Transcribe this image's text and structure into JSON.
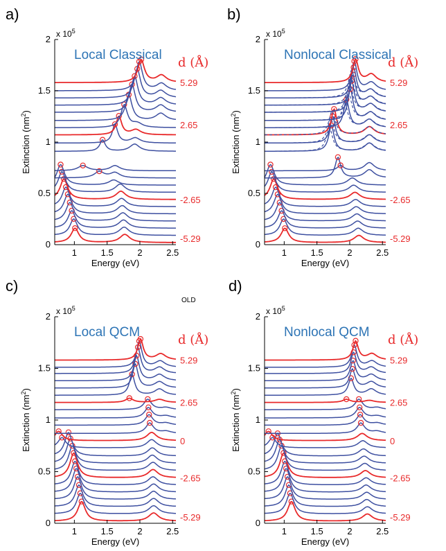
{
  "figure": {
    "note": "OLD",
    "colors": {
      "red": "#e8292a",
      "blue": "#3d4fa0",
      "title": "#2d74b5",
      "axis": "#000000"
    }
  },
  "chart_data": [
    {
      "type": "line",
      "panel": "a)",
      "title": "Local Classical",
      "xlabel": "Energy (eV)",
      "ylabel": "Extinction (nm2)",
      "y_multiplier": "x 10^5",
      "xlim": [
        0.7,
        2.55
      ],
      "ylim": [
        0,
        2
      ],
      "xticks": [
        1,
        1.5,
        2,
        2.5
      ],
      "yticks": [
        0,
        0.5,
        1,
        1.5,
        2
      ],
      "legend_title": "d (Å)",
      "row_labels": [
        {
          "label": "5.29",
          "y": 1.58
        },
        {
          "label": "2.65",
          "y": 1.17
        },
        {
          "label": "-2.65",
          "y": 0.44
        },
        {
          "label": "-5.29",
          "y": 0.06
        }
      ],
      "baselines": [
        0.02,
        0.09,
        0.16,
        0.23,
        0.3,
        0.37,
        0.44,
        0.51,
        0.58,
        0.65,
        0.72,
        0.91,
        0.99,
        1.07,
        1.14,
        1.21,
        1.29,
        1.36,
        1.43,
        1.5,
        1.58
      ],
      "red_rows": [
        0,
        6,
        13,
        20
      ],
      "peaks": [
        {
          "e": 1.01,
          "h": 0.14,
          "w": 0.07,
          "e2": 1.77,
          "h2": 0.08
        },
        {
          "e": 0.99,
          "h": 0.16,
          "w": 0.07,
          "e2": 1.76,
          "h2": 0.08
        },
        {
          "e": 0.96,
          "h": 0.17,
          "w": 0.07,
          "e2": 1.75,
          "h2": 0.08
        },
        {
          "e": 0.93,
          "h": 0.18,
          "w": 0.07,
          "e2": 1.74,
          "h2": 0.08
        },
        {
          "e": 0.9,
          "h": 0.19,
          "w": 0.07,
          "e2": 1.73,
          "h2": 0.08
        },
        {
          "e": 0.87,
          "h": 0.19,
          "w": 0.07,
          "e2": 1.72,
          "h2": 0.08
        },
        {
          "e": 0.84,
          "h": 0.2,
          "w": 0.07,
          "e2": 1.71,
          "h2": 0.08
        },
        {
          "e": 0.81,
          "h": 0.2,
          "w": 0.07,
          "e2": 1.7,
          "h2": 0.08
        },
        {
          "e": 0.79,
          "h": 0.2,
          "w": 0.07,
          "e2": 1.6,
          "h2": 0.05
        },
        {
          "e": 1.38,
          "h": 0.06,
          "w": 0.09,
          "e2": 1.62,
          "h2": 0.05
        },
        {
          "e": 1.13,
          "h": 0.05,
          "w": 0.09,
          "e2": 1.62,
          "h2": 0.05
        },
        {
          "e": 1.43,
          "h": 0.11,
          "w": 0.05,
          "e2": 1.92,
          "h2": 0.07
        },
        {
          "e": 1.62,
          "h": 0.18,
          "w": 0.05,
          "e2": 1.93,
          "h2": 0.05
        },
        {
          "e": 1.68,
          "h": 0.18,
          "w": 0.05,
          "e2": 1.94,
          "h2": 0.05
        },
        {
          "e": 1.76,
          "h": 0.22,
          "w": 0.06,
          "e2": 1.96,
          "h2": 0.04
        },
        {
          "e": 1.83,
          "h": 0.25,
          "w": 0.06,
          "e2": 2.32,
          "h2": 0.07
        },
        {
          "e": 1.88,
          "h": 0.27,
          "w": 0.06,
          "e2": 2.32,
          "h2": 0.07
        },
        {
          "e": 1.92,
          "h": 0.28,
          "w": 0.06,
          "e2": 2.32,
          "h2": 0.07
        },
        {
          "e": 1.96,
          "h": 0.28,
          "w": 0.06,
          "e2": 2.32,
          "h2": 0.07
        },
        {
          "e": 1.99,
          "h": 0.28,
          "w": 0.06,
          "e2": 2.33,
          "h2": 0.07
        },
        {
          "e": 2.02,
          "h": 0.22,
          "w": 0.06,
          "e2": 2.33,
          "h2": 0.07
        }
      ]
    },
    {
      "type": "line",
      "panel": "b)",
      "title": "Nonlocal Classical",
      "xlabel": "Energy (eV)",
      "ylabel": "Extinction (nm2)",
      "y_multiplier": "x 10^5",
      "xlim": [
        0.7,
        2.55
      ],
      "ylim": [
        0,
        2
      ],
      "xticks": [
        1,
        1.5,
        2,
        2.5
      ],
      "yticks": [
        0,
        0.5,
        1,
        1.5,
        2
      ],
      "legend_title": "d (Å)",
      "row_labels": [
        {
          "label": "5.29",
          "y": 1.58
        },
        {
          "label": "2.65",
          "y": 1.17
        },
        {
          "label": "-2.65",
          "y": 0.44
        },
        {
          "label": "-5.29",
          "y": 0.06
        }
      ],
      "baselines": [
        0.02,
        0.09,
        0.16,
        0.23,
        0.3,
        0.37,
        0.44,
        0.51,
        0.58,
        0.65,
        0.72,
        0.91,
        0.99,
        1.07,
        1.14,
        1.21,
        1.29,
        1.36,
        1.43,
        1.5,
        1.58
      ],
      "red_rows": [
        0,
        6,
        13,
        20
      ],
      "dashed_rows": [
        11,
        12,
        13,
        14,
        15,
        16,
        17,
        18
      ],
      "peaks": [
        {
          "e": 1.01,
          "h": 0.14,
          "w": 0.07,
          "e2": 2.14,
          "h2": 0.07
        },
        {
          "e": 0.99,
          "h": 0.16,
          "w": 0.07,
          "e2": 2.13,
          "h2": 0.07
        },
        {
          "e": 0.96,
          "h": 0.17,
          "w": 0.07,
          "e2": 2.12,
          "h2": 0.07
        },
        {
          "e": 0.93,
          "h": 0.18,
          "w": 0.07,
          "e2": 2.11,
          "h2": 0.07
        },
        {
          "e": 0.9,
          "h": 0.19,
          "w": 0.07,
          "e2": 2.1,
          "h2": 0.07
        },
        {
          "e": 0.87,
          "h": 0.19,
          "w": 0.07,
          "e2": 2.09,
          "h2": 0.07
        },
        {
          "e": 0.84,
          "h": 0.2,
          "w": 0.07,
          "e2": 2.08,
          "h2": 0.07
        },
        {
          "e": 0.81,
          "h": 0.2,
          "w": 0.07,
          "e2": 2.06,
          "h2": 0.07
        },
        {
          "e": 0.79,
          "h": 0.2,
          "w": 0.07,
          "e2": 2.04,
          "h2": 0.07
        },
        {
          "e": 1.82,
          "h": 0.2,
          "w": 0.05,
          "e2": 2.3,
          "h2": 0.08
        },
        {
          "e": 1.86,
          "h": 0.05,
          "w": 0.06,
          "e2": 2.3,
          "h2": 0.08
        },
        {
          "e": 1.72,
          "h": 0.25,
          "w": 0.05,
          "e2": 2.3,
          "h2": 0.08
        },
        {
          "e": 1.74,
          "h": 0.26,
          "w": 0.05,
          "e2": 2.3,
          "h2": 0.08
        },
        {
          "e": 1.76,
          "h": 0.25,
          "w": 0.05,
          "e2": 2.3,
          "h2": 0.08
        },
        {
          "e": 1.95,
          "h": 0.27,
          "w": 0.05,
          "e2": 2.3,
          "h2": 0.08
        },
        {
          "e": 2.01,
          "h": 0.3,
          "w": 0.05,
          "e2": 2.32,
          "h2": 0.08
        },
        {
          "e": 2.03,
          "h": 0.3,
          "w": 0.05,
          "e2": 2.32,
          "h2": 0.08
        },
        {
          "e": 2.05,
          "h": 0.29,
          "w": 0.05,
          "e2": 2.32,
          "h2": 0.08
        },
        {
          "e": 2.06,
          "h": 0.29,
          "w": 0.05,
          "e2": 2.32,
          "h2": 0.08
        },
        {
          "e": 2.07,
          "h": 0.28,
          "w": 0.05,
          "e2": 2.33,
          "h2": 0.08
        },
        {
          "e": 2.09,
          "h": 0.22,
          "w": 0.05,
          "e2": 2.33,
          "h2": 0.08
        }
      ]
    },
    {
      "type": "line",
      "panel": "c)",
      "title": "Local QCM",
      "xlabel": "Energy (eV)",
      "ylabel": "Extinction (nm2)",
      "y_multiplier": "x 10^5",
      "xlim": [
        0.7,
        2.55
      ],
      "ylim": [
        0,
        2
      ],
      "xticks": [
        1,
        1.5,
        2,
        2.5
      ],
      "yticks": [
        0,
        0.5,
        1,
        1.5,
        2
      ],
      "legend_title": "d (Å)",
      "row_labels": [
        {
          "label": "5.29",
          "y": 1.58
        },
        {
          "label": "2.65",
          "y": 1.17
        },
        {
          "label": "0",
          "y": 0.8
        },
        {
          "label": "-2.65",
          "y": 0.44
        },
        {
          "label": "-5.29",
          "y": 0.06
        }
      ],
      "baselines": [
        0.02,
        0.09,
        0.16,
        0.23,
        0.3,
        0.37,
        0.44,
        0.51,
        0.58,
        0.65,
        0.73,
        0.8,
        0.87,
        0.95,
        1.02,
        1.1,
        1.17,
        1.24,
        1.31,
        1.38,
        1.45,
        1.51,
        1.58
      ],
      "red_rows": [
        0,
        6,
        11,
        16,
        22
      ],
      "peaks": [
        {
          "e": 1.11,
          "h": 0.19,
          "w": 0.07,
          "e2": 2.21,
          "h2": 0.08
        },
        {
          "e": 1.09,
          "h": 0.2,
          "w": 0.07,
          "e2": 2.21,
          "h2": 0.08
        },
        {
          "e": 1.07,
          "h": 0.21,
          "w": 0.07,
          "e2": 2.21,
          "h2": 0.08
        },
        {
          "e": 1.05,
          "h": 0.22,
          "w": 0.07,
          "e2": 2.21,
          "h2": 0.08
        },
        {
          "e": 1.03,
          "h": 0.23,
          "w": 0.07,
          "e2": 2.21,
          "h2": 0.08
        },
        {
          "e": 1.01,
          "h": 0.23,
          "w": 0.07,
          "e2": 2.2,
          "h2": 0.08
        },
        {
          "e": 0.99,
          "h": 0.24,
          "w": 0.07,
          "e2": 2.2,
          "h2": 0.08
        },
        {
          "e": 0.97,
          "h": 0.24,
          "w": 0.07,
          "e2": 2.2,
          "h2": 0.08
        },
        {
          "e": 0.94,
          "h": 0.24,
          "w": 0.07,
          "e2": 2.19,
          "h2": 0.08
        },
        {
          "e": 0.91,
          "h": 0.23,
          "w": 0.07,
          "e2": 2.19,
          "h2": 0.08
        },
        {
          "e": 0.81,
          "h": 0.1,
          "w": 0.07,
          "e2": 2.18,
          "h2": 0.08
        },
        {
          "e": 0.76,
          "h": 0.09,
          "w": 0.07,
          "e2": 2.18,
          "h2": 0.08
        },
        {
          "e": 2.15,
          "h": 0.1,
          "w": 0.07,
          "e2": 2.4,
          "h2": 0.02
        },
        {
          "e": 2.14,
          "h": 0.1,
          "w": 0.07,
          "e2": 2.4,
          "h2": 0.02
        },
        {
          "e": 2.13,
          "h": 0.1,
          "w": 0.07,
          "e2": 2.4,
          "h2": 0.02
        },
        {
          "e": 2.12,
          "h": 0.1,
          "w": 0.07,
          "e2": 2.4,
          "h2": 0.02
        },
        {
          "e": 1.84,
          "h": 0.04,
          "w": 0.07,
          "e2": 2.3,
          "h2": 0.03
        },
        {
          "e": 1.88,
          "h": 0.2,
          "w": 0.05,
          "e2": 2.3,
          "h2": 0.06
        },
        {
          "e": 1.93,
          "h": 0.23,
          "w": 0.05,
          "e2": 2.3,
          "h2": 0.06
        },
        {
          "e": 1.95,
          "h": 0.24,
          "w": 0.05,
          "e2": 2.3,
          "h2": 0.06
        },
        {
          "e": 1.97,
          "h": 0.25,
          "w": 0.05,
          "e2": 2.3,
          "h2": 0.06
        },
        {
          "e": 1.99,
          "h": 0.25,
          "w": 0.05,
          "e2": 2.31,
          "h2": 0.06
        },
        {
          "e": 2.01,
          "h": 0.2,
          "w": 0.05,
          "e2": 2.32,
          "h2": 0.06
        }
      ]
    },
    {
      "type": "line",
      "panel": "d)",
      "title": "Nonlocal  QCM",
      "xlabel": "Energy (eV)",
      "ylabel": "Extinction (nm2)",
      "y_multiplier": "x 10^5",
      "xlim": [
        0.7,
        2.55
      ],
      "ylim": [
        0,
        2
      ],
      "xticks": [
        1,
        1.5,
        2,
        2.5
      ],
      "yticks": [
        0,
        0.5,
        1,
        1.5,
        2
      ],
      "legend_title": "d (Å)",
      "row_labels": [
        {
          "label": "5.29",
          "y": 1.58
        },
        {
          "label": "2.65",
          "y": 1.17
        },
        {
          "label": "0",
          "y": 0.8
        },
        {
          "label": "-2.65",
          "y": 0.44
        },
        {
          "label": "-5.29",
          "y": 0.06
        }
      ],
      "baselines": [
        0.02,
        0.09,
        0.16,
        0.23,
        0.3,
        0.37,
        0.44,
        0.51,
        0.58,
        0.65,
        0.73,
        0.8,
        0.87,
        0.95,
        1.02,
        1.1,
        1.17,
        1.24,
        1.31,
        1.38,
        1.45,
        1.51,
        1.58
      ],
      "red_rows": [
        0,
        6,
        11,
        16,
        22
      ],
      "peaks": [
        {
          "e": 1.11,
          "h": 0.19,
          "w": 0.07,
          "e2": 2.27,
          "h2": 0.07
        },
        {
          "e": 1.09,
          "h": 0.2,
          "w": 0.07,
          "e2": 2.27,
          "h2": 0.07
        },
        {
          "e": 1.07,
          "h": 0.21,
          "w": 0.07,
          "e2": 2.26,
          "h2": 0.07
        },
        {
          "e": 1.05,
          "h": 0.22,
          "w": 0.07,
          "e2": 2.26,
          "h2": 0.07
        },
        {
          "e": 1.03,
          "h": 0.23,
          "w": 0.07,
          "e2": 2.25,
          "h2": 0.07
        },
        {
          "e": 1.01,
          "h": 0.23,
          "w": 0.07,
          "e2": 2.25,
          "h2": 0.07
        },
        {
          "e": 0.99,
          "h": 0.24,
          "w": 0.07,
          "e2": 2.24,
          "h2": 0.07
        },
        {
          "e": 0.96,
          "h": 0.24,
          "w": 0.07,
          "e2": 2.23,
          "h2": 0.07
        },
        {
          "e": 0.93,
          "h": 0.23,
          "w": 0.07,
          "e2": 2.22,
          "h2": 0.07
        },
        {
          "e": 0.9,
          "h": 0.22,
          "w": 0.07,
          "e2": 2.21,
          "h2": 0.07
        },
        {
          "e": 0.82,
          "h": 0.1,
          "w": 0.07,
          "e2": 2.2,
          "h2": 0.07
        },
        {
          "e": 0.76,
          "h": 0.09,
          "w": 0.07,
          "e2": 2.19,
          "h2": 0.07
        },
        {
          "e": 2.17,
          "h": 0.1,
          "w": 0.07,
          "e2": 2.42,
          "h2": 0.02
        },
        {
          "e": 2.16,
          "h": 0.1,
          "w": 0.07,
          "e2": 2.42,
          "h2": 0.02
        },
        {
          "e": 2.15,
          "h": 0.1,
          "w": 0.07,
          "e2": 2.42,
          "h2": 0.02
        },
        {
          "e": 2.14,
          "h": 0.1,
          "w": 0.07,
          "e2": 2.42,
          "h2": 0.02
        },
        {
          "e": 1.95,
          "h": 0.03,
          "w": 0.07,
          "e2": 2.3,
          "h2": 0.02
        },
        {
          "e": 2.02,
          "h": 0.16,
          "w": 0.05,
          "e2": 2.33,
          "h2": 0.06
        },
        {
          "e": 2.04,
          "h": 0.18,
          "w": 0.05,
          "e2": 2.33,
          "h2": 0.06
        },
        {
          "e": 2.05,
          "h": 0.19,
          "w": 0.05,
          "e2": 2.33,
          "h2": 0.06
        },
        {
          "e": 2.06,
          "h": 0.2,
          "w": 0.05,
          "e2": 2.33,
          "h2": 0.06
        },
        {
          "e": 2.07,
          "h": 0.21,
          "w": 0.05,
          "e2": 2.34,
          "h2": 0.06
        },
        {
          "e": 2.09,
          "h": 0.18,
          "w": 0.05,
          "e2": 2.34,
          "h2": 0.06
        }
      ]
    }
  ]
}
